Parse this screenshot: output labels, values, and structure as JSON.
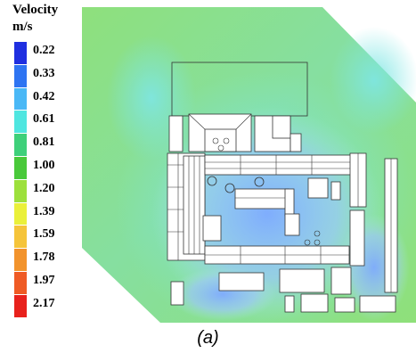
{
  "legend": {
    "title_line1": "Velocity",
    "title_line2": "m/s",
    "levels": [
      {
        "value": "0.22",
        "color": "#1f2fe0"
      },
      {
        "value": "0.33",
        "color": "#2e74f2"
      },
      {
        "value": "0.42",
        "color": "#4ab8f6"
      },
      {
        "value": "0.61",
        "color": "#4fe6e0"
      },
      {
        "value": "0.81",
        "color": "#3ed07a"
      },
      {
        "value": "1.00",
        "color": "#49c93a"
      },
      {
        "value": "1.20",
        "color": "#9de03c"
      },
      {
        "value": "1.39",
        "color": "#eaf03a"
      },
      {
        "value": "1.59",
        "color": "#f5c43a"
      },
      {
        "value": "1.78",
        "color": "#f2932c"
      },
      {
        "value": "1.97",
        "color": "#ef5a24"
      },
      {
        "value": "2.17",
        "color": "#e8211c"
      }
    ]
  },
  "caption": "(a)",
  "colors": {
    "field_green": "#8fe27a",
    "field_cyan": "#7fe4d8",
    "wake_blue": "#9fc6ff"
  }
}
